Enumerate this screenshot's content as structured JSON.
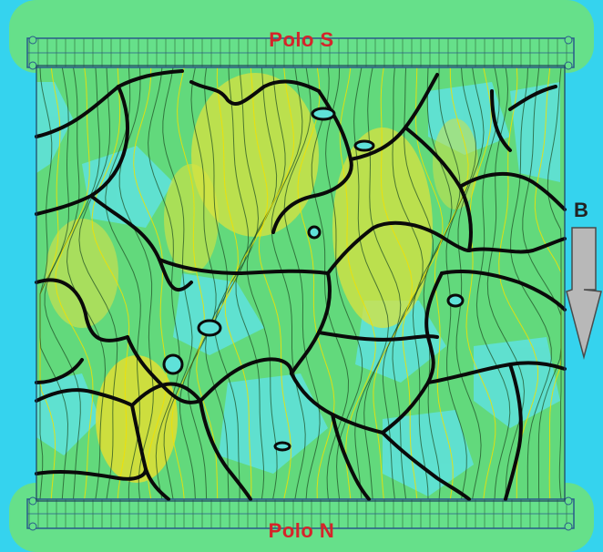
{
  "labels": {
    "pole_top": "Polo S",
    "pole_bottom": "Polo N",
    "field_vector": "B"
  },
  "colors": {
    "pole_text": "#d6242a",
    "outer_background": "#35d3ee",
    "domain_green": "#5fdb74",
    "domain_cyan": "#5ee0d8",
    "high_density_yellow": "#cfe24a",
    "grain_boundary": "#0a0a0a",
    "field_line_dark": "#1d4a22",
    "field_line_yellow": "#f2e000",
    "arrow_fill": "#b8b8b8",
    "frame_line": "#2a5a8a"
  },
  "icons": {
    "field_direction": "arrow-down-icon"
  }
}
